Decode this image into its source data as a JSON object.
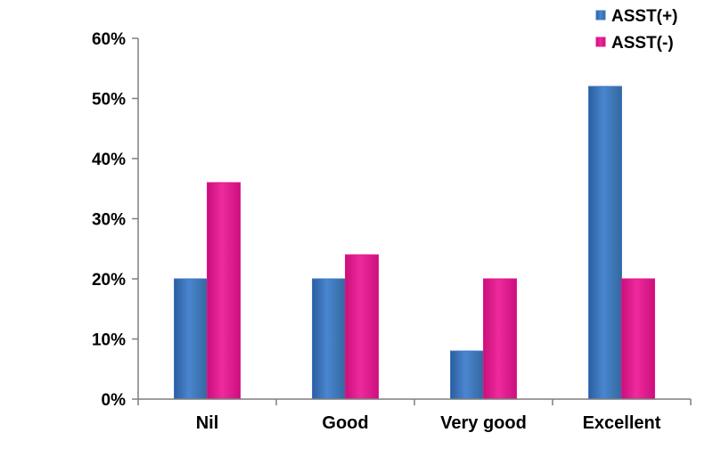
{
  "chart_data": {
    "type": "bar",
    "categories": [
      "Nil",
      "Good",
      "Very good",
      "Excellent"
    ],
    "series": [
      {
        "name": "ASST(+)",
        "color": "#3f78c4",
        "values": [
          20,
          20,
          8,
          52
        ]
      },
      {
        "name": "ASST(-)",
        "color": "#e4168f",
        "values": [
          36,
          24,
          20,
          20
        ]
      }
    ],
    "yticks": [
      "0%",
      "10%",
      "20%",
      "30%",
      "40%",
      "50%",
      "60%"
    ],
    "ylim": [
      0,
      60
    ],
    "grid": false,
    "legend": "top-right"
  }
}
